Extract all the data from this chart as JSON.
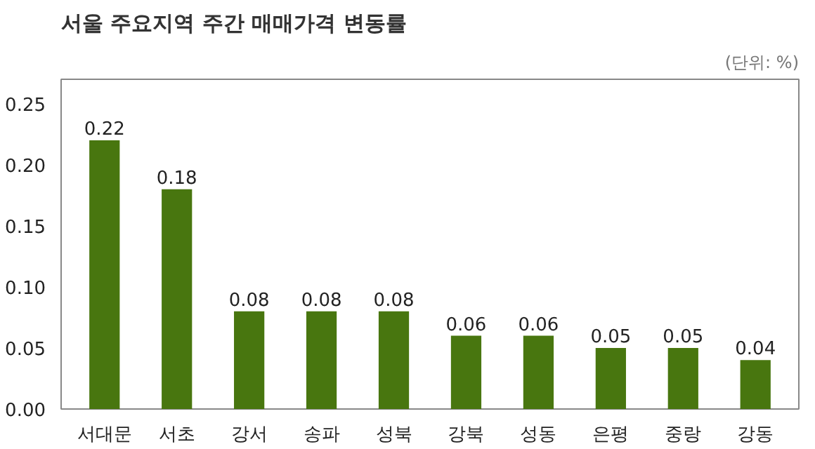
{
  "chart_data": {
    "type": "bar",
    "title": "서울 주요지역 주간 매매가격 변동률",
    "annotations": [
      "(단위: %)"
    ],
    "categories": [
      "서대문",
      "서초",
      "강서",
      "송파",
      "성북",
      "강북",
      "성동",
      "은평",
      "중랑",
      "강동"
    ],
    "values": [
      0.22,
      0.18,
      0.08,
      0.08,
      0.08,
      0.06,
      0.06,
      0.05,
      0.05,
      0.04
    ],
    "color": "#48760f",
    "ylim": [
      0,
      0.27
    ],
    "yticks": [
      {
        "value": 0,
        "label": "0.00"
      },
      {
        "value": 0.05,
        "label": "0.05"
      },
      {
        "value": 0.1,
        "label": "0.10"
      },
      {
        "value": 0.15,
        "label": "0.15"
      },
      {
        "value": 0.2,
        "label": "0.20"
      },
      {
        "value": 0.25,
        "label": "0.25"
      }
    ],
    "data_labels": true
  }
}
